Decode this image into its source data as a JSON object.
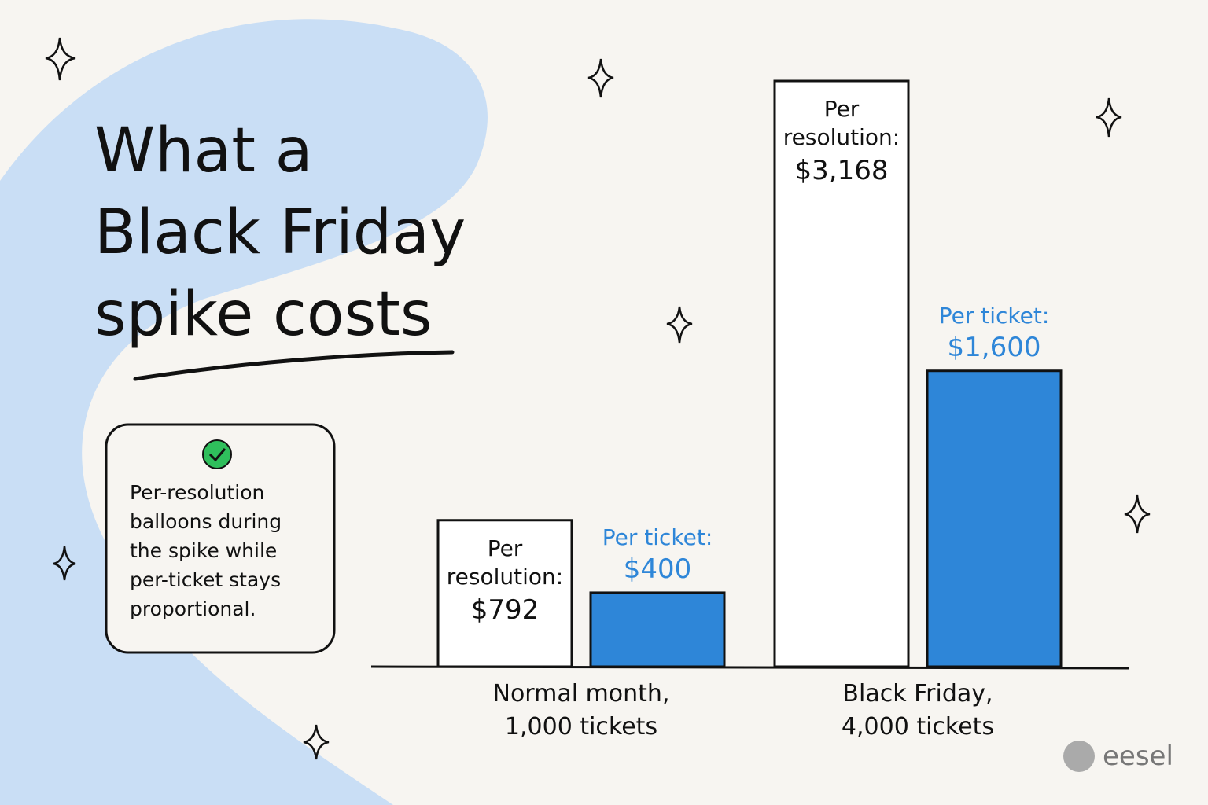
{
  "chart_data": {
    "type": "bar",
    "title": "What a\nBlack Friday\nspike costs",
    "note": "Per-resolution balloons during the spike while per-ticket stays proportional.",
    "categories": [
      "Normal month,\n1,000 tickets",
      "Black Friday,\n4,000 tickets"
    ],
    "series": [
      {
        "name": "Per resolution:",
        "color": "#ffffff",
        "values": [
          792,
          3168
        ],
        "value_labels": [
          "$792",
          "$3,168"
        ]
      },
      {
        "name": "Per ticket:",
        "color": "#2e86d8",
        "values": [
          400,
          1600
        ],
        "value_labels": [
          "$400",
          "$1,600"
        ]
      }
    ],
    "logo": "eesel"
  }
}
